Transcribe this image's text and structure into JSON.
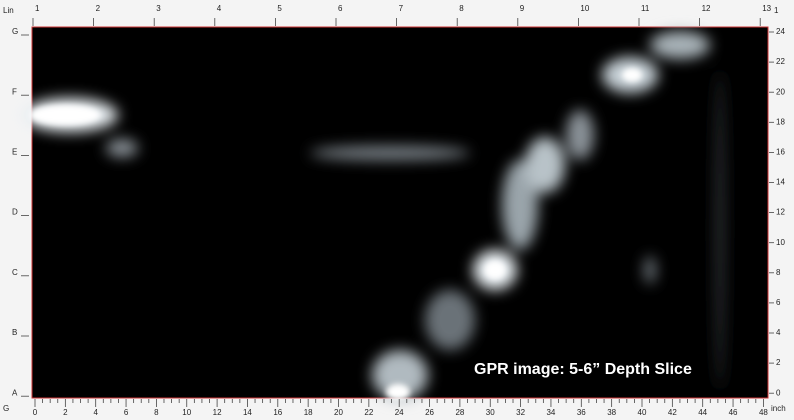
{
  "top_ruler": {
    "corner_label": "Lin",
    "labels": [
      1,
      2,
      3,
      4,
      5,
      6,
      7,
      8,
      9,
      10,
      11,
      12,
      13
    ],
    "right_corner_label": "1"
  },
  "left_ruler": {
    "labels": [
      "G",
      "F",
      "E",
      "D",
      "C",
      "B",
      "A"
    ]
  },
  "right_ruler": {
    "labels": [
      24,
      22,
      20,
      18,
      16,
      14,
      12,
      10,
      8,
      6,
      4,
      2,
      0
    ]
  },
  "bottom_ruler": {
    "corner_label": "G",
    "labels": [
      0,
      2,
      4,
      6,
      8,
      10,
      12,
      14,
      16,
      18,
      20,
      22,
      24,
      26,
      28,
      30,
      32,
      34,
      36,
      38,
      40,
      42,
      44,
      46,
      48
    ],
    "unit_label": "inch"
  },
  "caption": "GPR image: 5-6” Depth Slice"
}
